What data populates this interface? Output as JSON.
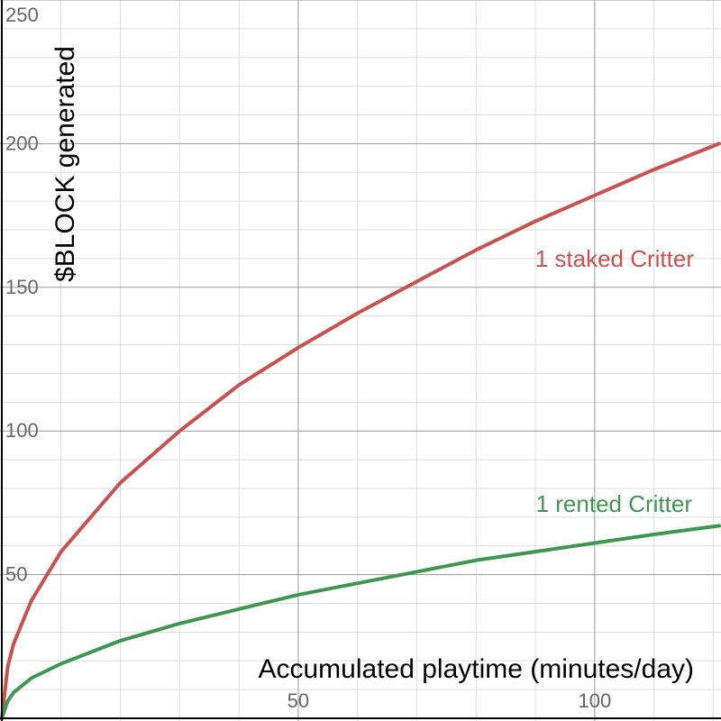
{
  "chart_data": {
    "type": "line",
    "xlabel": "Accumulated playtime (minutes/day)",
    "ylabel": "$BLOCK generated",
    "xlim": [
      0,
      121
    ],
    "ylim": [
      0,
      250
    ],
    "x_ticks": [
      50,
      100
    ],
    "x_tick_labels": [
      "50",
      "100"
    ],
    "y_ticks": [
      50,
      100,
      150,
      200,
      250
    ],
    "y_tick_labels": [
      "50",
      "100",
      "150",
      "200",
      "250"
    ],
    "x_minor_step": 10,
    "y_minor_step": 10,
    "grid": true,
    "series": [
      {
        "name": "1 staked Critter",
        "color": "#c9514f",
        "x": [
          0,
          1,
          2,
          5,
          10,
          20,
          30,
          40,
          50,
          60,
          70,
          80,
          90,
          100,
          110,
          121
        ],
        "y": [
          0,
          18,
          26,
          41,
          58,
          82,
          100,
          116,
          129,
          141,
          152,
          163,
          173,
          182,
          191,
          200
        ]
      },
      {
        "name": "1 rented Critter",
        "color": "#3f9651",
        "x": [
          0,
          1,
          2,
          5,
          10,
          20,
          30,
          40,
          50,
          60,
          70,
          80,
          90,
          100,
          110,
          121
        ],
        "y": [
          0,
          6,
          9,
          14,
          19,
          27,
          33,
          38,
          43,
          47,
          51,
          55,
          58,
          61,
          64,
          67
        ]
      }
    ]
  }
}
